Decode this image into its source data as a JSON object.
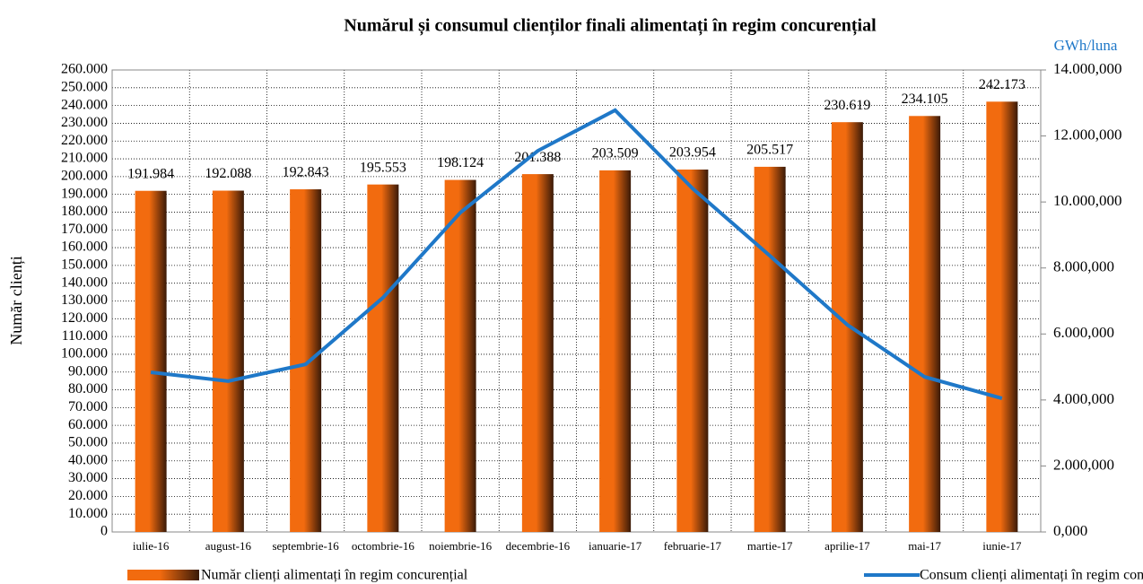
{
  "chart_data": {
    "type": "bar",
    "title": "Numărul și consumul clienților finali alimentați în regim concurențial",
    "y_label": "Număr clienți",
    "y2_label": "GWh/luna",
    "categories": [
      "iulie-16",
      "august-16",
      "septembrie-16",
      "octombrie-16",
      "noiembrie-16",
      "decembrie-16",
      "ianuarie-17",
      "februarie-17",
      "martie-17",
      "aprilie-17",
      "mai-17",
      "iunie-17"
    ],
    "series": [
      {
        "name": "Număr clienți alimentați în regim concurențial",
        "type": "bar",
        "color": "#f26b0f",
        "values": [
          191984,
          192088,
          192843,
          195553,
          198124,
          201388,
          203509,
          203954,
          205517,
          230619,
          234105,
          242173
        ],
        "value_labels": [
          "191.984",
          "192.088",
          "192.843",
          "195.553",
          "198.124",
          "201.388",
          "203.509",
          "203.954",
          "205.517",
          "230.619",
          "234.105",
          "242.173"
        ]
      },
      {
        "name": "Consum clienți alimentați în regim concurențial",
        "type": "line",
        "color": "#1f78c8",
        "axis": "y2",
        "values": [
          4840000,
          4570000,
          5080000,
          7100000,
          9680000,
          11550000,
          12780000,
          10410000,
          8370000,
          6280000,
          4700000,
          4050000
        ]
      }
    ],
    "ylim": [
      0,
      260000
    ],
    "yticks": [
      0,
      {
        "value": 10000,
        "label": "10.000"
      },
      {
        "value": 20000,
        "label": "20.000"
      },
      {
        "value": 30000,
        "label": "30.000"
      },
      {
        "value": 40000,
        "label": "40.000"
      },
      {
        "value": 50000,
        "label": "50.000"
      },
      {
        "value": 60000,
        "label": "60.000"
      },
      {
        "value": 70000,
        "label": "70.000"
      },
      {
        "value": 80000,
        "label": "80.000"
      },
      {
        "value": 90000,
        "label": "90.000"
      },
      {
        "value": 100000,
        "label": "100.000"
      },
      {
        "value": 110000,
        "label": "110.000"
      },
      {
        "value": 120000,
        "label": "120.000"
      },
      {
        "value": 130000,
        "label": "130.000"
      },
      {
        "value": 140000,
        "label": "140.000"
      },
      {
        "value": 150000,
        "label": "150.000"
      },
      {
        "value": 160000,
        "label": "160.000"
      },
      {
        "value": 170000,
        "label": "170.000"
      },
      {
        "value": 180000,
        "label": "180.000"
      },
      {
        "value": 190000,
        "label": "190.000"
      },
      {
        "value": 200000,
        "label": "200.000"
      },
      {
        "value": 210000,
        "label": "210.000"
      },
      {
        "value": 220000,
        "label": "220.000"
      },
      {
        "value": 230000,
        "label": "230.000"
      },
      {
        "value": 240000,
        "label": "240.000"
      },
      {
        "value": 250000,
        "label": "250.000"
      },
      {
        "value": 260000,
        "label": "260.000"
      }
    ],
    "y2lim": [
      0,
      14000000
    ],
    "y2ticks": [
      {
        "value": 0,
        "label": "0,000"
      },
      {
        "value": 2000000,
        "label": "2.000,000"
      },
      {
        "value": 4000000,
        "label": "4.000,000"
      },
      {
        "value": 6000000,
        "label": "6.000,000"
      },
      {
        "value": 8000000,
        "label": "8.000,000"
      },
      {
        "value": 10000000,
        "label": "10.000,000"
      },
      {
        "value": 12000000,
        "label": "12.000,000"
      },
      {
        "value": 14000000,
        "label": "14.000,000"
      }
    ],
    "grid": true,
    "legend": "bottom"
  }
}
